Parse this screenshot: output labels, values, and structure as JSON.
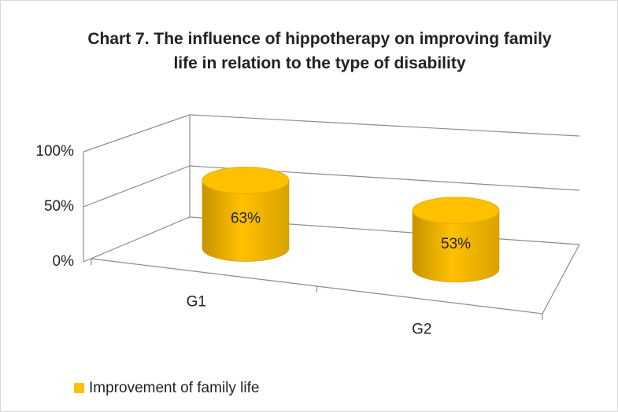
{
  "chart_data": {
    "type": "bar3d",
    "title": "Chart 7. The influence of hippotherapy on improving family life in relation to the type of disability",
    "categories": [
      "G1",
      "G2"
    ],
    "series": [
      {
        "name": "Improvement of family life",
        "color": "#ffc000",
        "values": [
          63,
          53
        ],
        "value_labels": [
          "63%",
          "53%"
        ]
      }
    ],
    "ylim": [
      0,
      100
    ],
    "yticks": [
      {
        "value": 0,
        "label": "0%"
      },
      {
        "value": 50,
        "label": "50%"
      },
      {
        "value": 100,
        "label": "100%"
      }
    ],
    "grid": true,
    "legend": "bottom-left"
  }
}
